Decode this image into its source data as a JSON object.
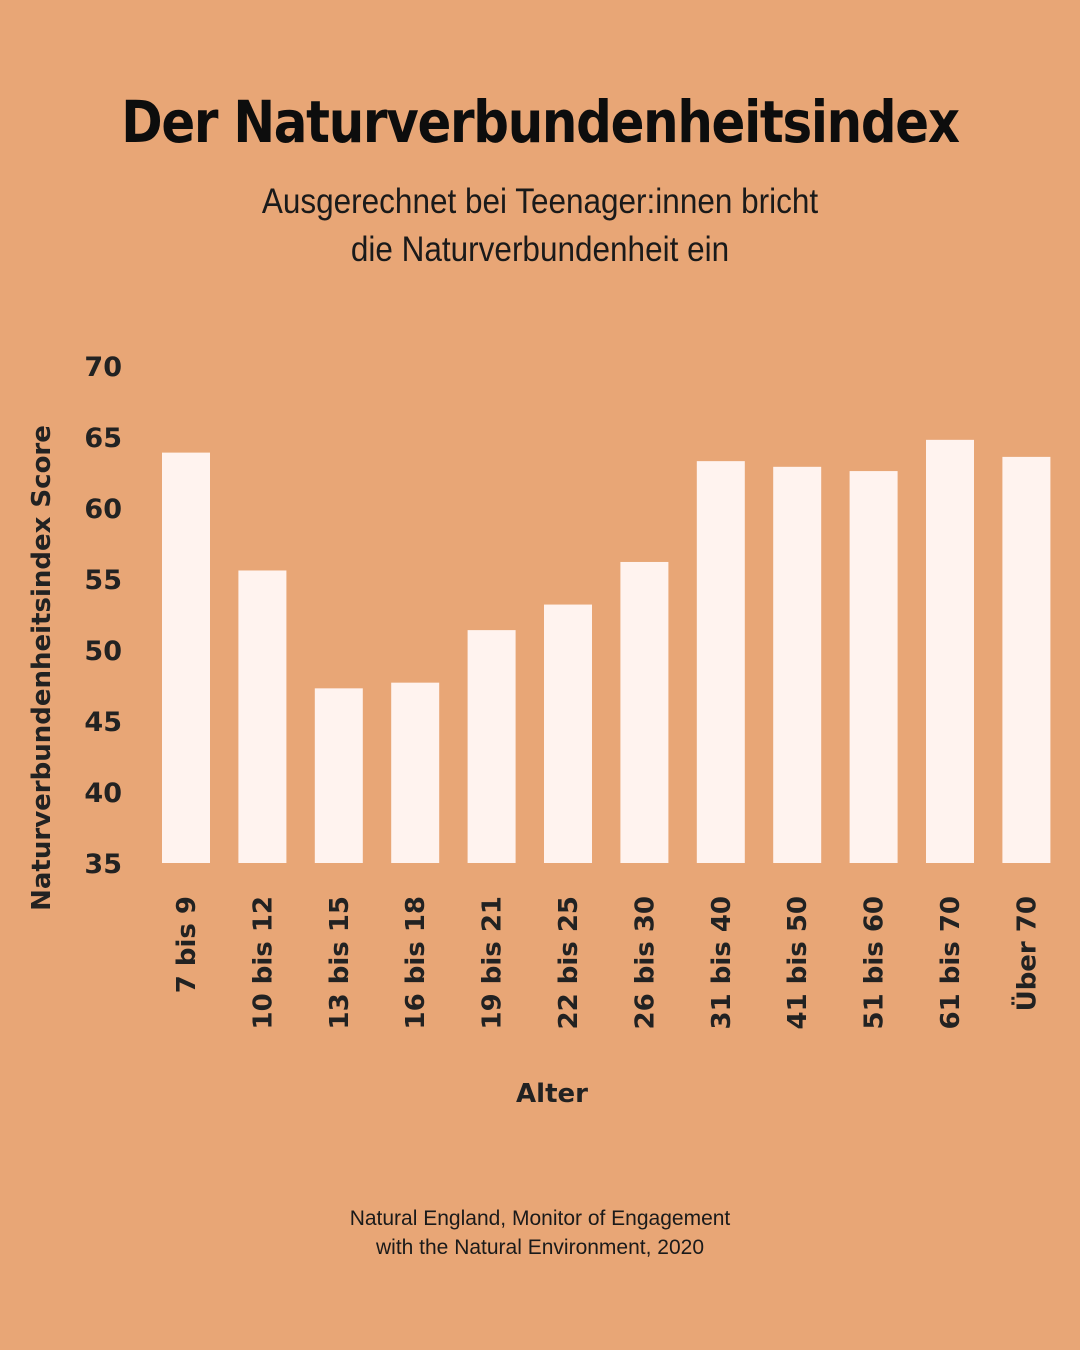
{
  "title": "Der Naturverbundenheitsindex",
  "subtitle": {
    "line1": "Ausgerechnet bei Teenager:innen bricht",
    "line2": "die Naturverbundenheit ein"
  },
  "source": {
    "line1": "Natural England, Monitor of Engagement",
    "line2": "with the Natural Environment, 2020"
  },
  "colors": {
    "background": "#e8a676",
    "bar": "#fff3ef",
    "text": "#111111"
  },
  "chart_data": {
    "type": "bar",
    "categories": [
      "7 bis 9",
      "10 bis 12",
      "13 bis 15",
      "16 bis 18",
      "19 bis 21",
      "22 bis 25",
      "26 bis 30",
      "31 bis 40",
      "41 bis 50",
      "51 bis 60",
      "61 bis 70",
      "Über 70"
    ],
    "values": [
      63.9,
      55.6,
      47.3,
      47.7,
      51.4,
      53.2,
      56.2,
      63.3,
      62.9,
      62.6,
      64.8,
      63.6
    ],
    "xlabel": "Alter",
    "ylabel": "Naturverbundenheitsindex Score",
    "ylim": [
      35,
      70
    ],
    "yticks": [
      35,
      40,
      45,
      50,
      55,
      60,
      65,
      70
    ],
    "grid": false,
    "legend": "none"
  }
}
